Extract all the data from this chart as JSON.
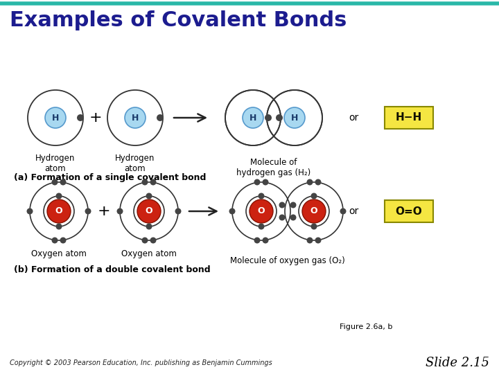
{
  "title": "Examples of Covalent Bonds",
  "title_color": "#1c1c8f",
  "title_fontsize": 22,
  "bg_color": "#ffffff",
  "header_line_color": "#2ab8a8",
  "section_a_label": "(a) Formation of a single covalent bond",
  "section_b_label": "(b) Formation of a double covalent bond",
  "h_nucleus_color": "#a8d8f0",
  "h_nucleus_label": "H",
  "o_nucleus_color": "#cc2211",
  "o_nucleus_label": "O",
  "electron_color": "#444444",
  "orbit_color": "#333333",
  "arrow_color": "#222222",
  "yellow_box_color": "#f5e642",
  "yellow_box_edge": "#888800",
  "h_bond_label": "H−H",
  "o_bond_label": "O=O",
  "label_h1": "Hydrogen\natom",
  "label_h2": "Hydrogen\natom",
  "label_hmol": "Molecule of\nhydrogen gas (H₂)",
  "label_o1": "Oxygen atom",
  "label_o2": "Oxygen atom",
  "label_omol": "Molecule of oxygen gas (O₂)",
  "fig_label": "Figure 2.6a, b",
  "copyright": "Copyright © 2003 Pearson Education, Inc. publishing as Benjamin Cummings",
  "slide": "Slide 2.15"
}
